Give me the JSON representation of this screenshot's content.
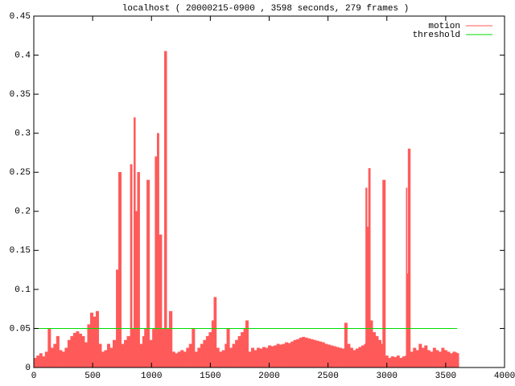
{
  "chart_data": {
    "type": "impulse",
    "title": "localhost ( 20000215-0900 , 3598 seconds, 279 frames )",
    "xlim": [
      0,
      4000
    ],
    "xticks": [
      0,
      500,
      1000,
      1500,
      2000,
      2500,
      3000,
      3500,
      4000
    ],
    "ylim": [
      0,
      0.45
    ],
    "yticks": [
      0,
      0.05,
      0.1,
      0.15,
      0.2,
      0.25,
      0.3,
      0.35,
      0.4,
      0.45
    ],
    "legend": "top-right",
    "series": [
      {
        "name": "motion",
        "color": "#ff5a5a",
        "style": "impulses",
        "x": [
          0,
          24,
          48,
          72,
          96,
          120,
          144,
          168,
          192,
          216,
          240,
          264,
          288,
          312,
          336,
          360,
          384,
          408,
          432,
          456,
          480,
          504,
          528,
          552,
          576,
          600,
          624,
          648,
          672,
          700,
          720,
          744,
          768,
          792,
          820,
          836,
          850,
          864,
          880,
          900,
          924,
          940,
          960,
          984,
          1008,
          1030,
          1048,
          1064,
          1088,
          1110,
          1130,
          1150,
          1176,
          1200,
          1224,
          1248,
          1272,
          1296,
          1320,
          1344,
          1368,
          1392,
          1416,
          1440,
          1464,
          1488,
          1512,
          1530,
          1552,
          1576,
          1600,
          1624,
          1640,
          1664,
          1688,
          1712,
          1736,
          1760,
          1784,
          1800,
          1824,
          1848,
          1872,
          1896,
          1920,
          1944,
          1968,
          1992,
          2016,
          2040,
          2064,
          2088,
          2112,
          2136,
          2160,
          2184,
          2208,
          2232,
          2256,
          2280,
          2304,
          2328,
          2352,
          2376,
          2400,
          2424,
          2448,
          2472,
          2496,
          2520,
          2544,
          2568,
          2592,
          2616,
          2640,
          2664,
          2688,
          2712,
          2736,
          2760,
          2784,
          2808,
          2820,
          2832,
          2844,
          2860,
          2880,
          2904,
          2928,
          2952,
          2964,
          2988,
          3012,
          3036,
          3060,
          3084,
          3108,
          3132,
          3156,
          3164,
          3172,
          3180,
          3200,
          3224,
          3248,
          3272,
          3296,
          3320,
          3344,
          3368,
          3392,
          3416,
          3440,
          3464,
          3488,
          3512,
          3536,
          3560,
          3584,
          3598
        ],
        "values": [
          0.012,
          0.015,
          0.018,
          0.014,
          0.02,
          0.05,
          0.025,
          0.03,
          0.04,
          0.022,
          0.02,
          0.025,
          0.035,
          0.04,
          0.044,
          0.046,
          0.043,
          0.04,
          0.032,
          0.055,
          0.07,
          0.065,
          0.072,
          0.03,
          0.02,
          0.022,
          0.03,
          0.025,
          0.035,
          0.125,
          0.25,
          0.03,
          0.035,
          0.04,
          0.26,
          0.05,
          0.32,
          0.2,
          0.25,
          0.03,
          0.04,
          0.05,
          0.24,
          0.035,
          0.05,
          0.27,
          0.3,
          0.17,
          0.05,
          0.405,
          0.05,
          0.072,
          0.02,
          0.018,
          0.02,
          0.022,
          0.02,
          0.025,
          0.03,
          0.05,
          0.02,
          0.025,
          0.03,
          0.035,
          0.04,
          0.045,
          0.06,
          0.09,
          0.025,
          0.02,
          0.022,
          0.03,
          0.05,
          0.025,
          0.03,
          0.035,
          0.04,
          0.045,
          0.05,
          0.06,
          0.02,
          0.025,
          0.022,
          0.025,
          0.024,
          0.026,
          0.025,
          0.028,
          0.027,
          0.028,
          0.03,
          0.029,
          0.03,
          0.032,
          0.031,
          0.033,
          0.035,
          0.036,
          0.038,
          0.039,
          0.038,
          0.037,
          0.036,
          0.035,
          0.034,
          0.033,
          0.032,
          0.03,
          0.029,
          0.028,
          0.027,
          0.026,
          0.025,
          0.024,
          0.057,
          0.03,
          0.025,
          0.022,
          0.024,
          0.026,
          0.028,
          0.03,
          0.23,
          0.18,
          0.255,
          0.06,
          0.045,
          0.04,
          0.035,
          0.03,
          0.24,
          0.015,
          0.012,
          0.014,
          0.013,
          0.015,
          0.012,
          0.014,
          0.015,
          0.23,
          0.12,
          0.28,
          0.02,
          0.025,
          0.022,
          0.03,
          0.025,
          0.028,
          0.022,
          0.02,
          0.025,
          0.022,
          0.02,
          0.025,
          0.022,
          0.02,
          0.018,
          0.02,
          0.019,
          0.018
        ]
      },
      {
        "name": "threshold",
        "color": "#00dd00",
        "style": "line",
        "x": [
          0,
          3598
        ],
        "values": [
          0.05,
          0.05
        ]
      }
    ]
  }
}
